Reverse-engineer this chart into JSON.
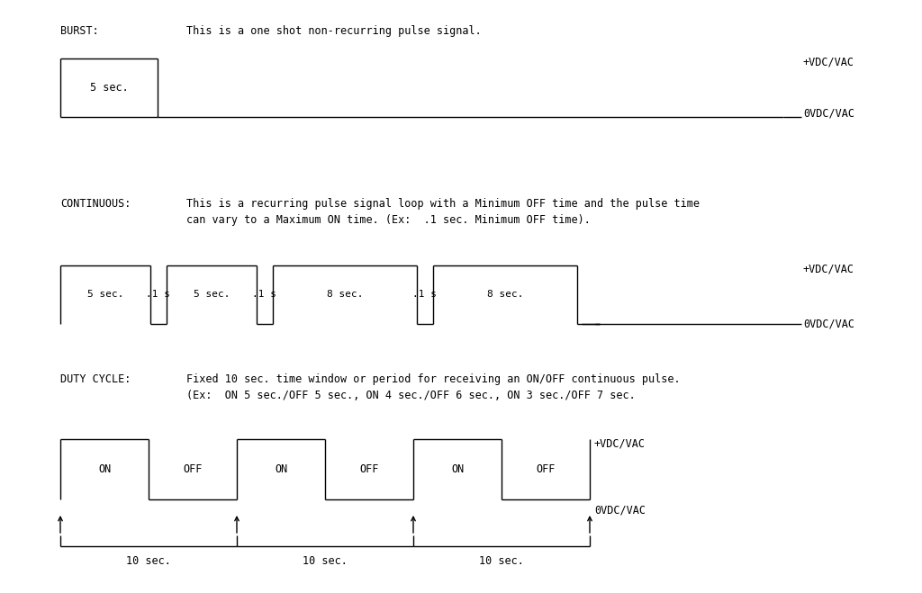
{
  "bg_color": "#ffffff",
  "text_color": "#000000",
  "font_family": "monospace",
  "font_size": 8.5,
  "burst_label": "BURST:",
  "burst_desc": "This is a one shot non-recurring pulse signal.",
  "burst_plus_label": "+VDC/VAC",
  "burst_zero_label": "0VDC/VAC",
  "burst_seg_label": "5 sec.",
  "continuous_label": "CONTINUOUS:",
  "continuous_desc1": "This is a recurring pulse signal loop with a Minimum OFF time and the pulse time",
  "continuous_desc2": "can vary to a Maximum ON time. (Ex:  .1 sec. Minimum OFF time).",
  "continuous_plus_label": "+VDC/VAC",
  "continuous_zero_label": "0VDC/VAC",
  "continuous_seg_labels": [
    "5 sec.",
    ".1 s",
    "5 sec.",
    ".1 s",
    "8 sec.",
    ".1 s",
    "8 sec."
  ],
  "continuous_levels": [
    1,
    0,
    1,
    0,
    1,
    0,
    1
  ],
  "duty_label": "DUTY CYCLE:",
  "duty_desc1": "Fixed 10 sec. time window or period for receiving an ON/OFF continuous pulse.",
  "duty_desc2": "(Ex:  ON 5 sec./OFF 5 sec., ON 4 sec./OFF 6 sec., ON 3 sec./OFF 7 sec.",
  "duty_plus_label": "+VDC/VAC",
  "duty_zero_label": "0VDC/VAC",
  "duty_seg_labels": [
    "ON",
    "OFF",
    "ON",
    "OFF",
    "ON",
    "OFF"
  ],
  "duty_period_labels": [
    "10 sec.",
    "10 sec.",
    "10 sec."
  ]
}
